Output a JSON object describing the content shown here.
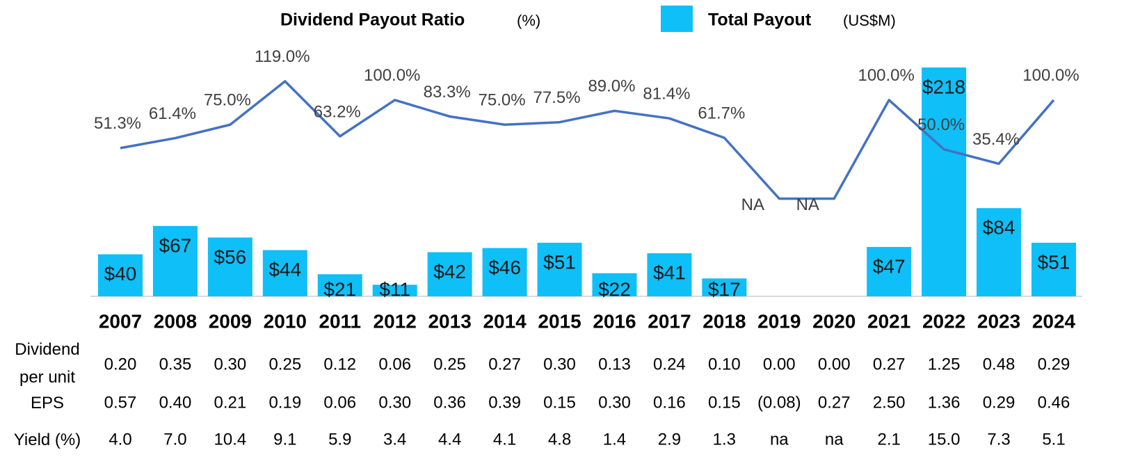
{
  "chart_data": {
    "type": "combo",
    "categories": [
      "2007",
      "2008",
      "2009",
      "2010",
      "2011",
      "2012",
      "2013",
      "2014",
      "2015",
      "2016",
      "2017",
      "2018",
      "2019",
      "2020",
      "2021",
      "2022",
      "2023",
      "2024"
    ],
    "series": [
      {
        "name": "Dividend Payout Ratio",
        "unit": "(%)",
        "type": "line",
        "axis": "y2",
        "color": "#4472c4",
        "values": [
          51.3,
          61.4,
          75.0,
          119.0,
          63.2,
          100.0,
          83.3,
          75.0,
          77.5,
          89.0,
          81.4,
          61.7,
          0,
          0,
          100.0,
          50.0,
          35.4,
          100.0
        ],
        "value_labels": [
          "51.3%",
          "61.4%",
          "75.0%",
          "119.0%",
          "63.2%",
          "100.0%",
          "83.3%",
          "75.0%",
          "77.5%",
          "89.0%",
          "81.4%",
          "61.7%",
          "NA",
          "NA",
          "100.0%",
          "50.0%",
          "35.4%",
          "100.0%"
        ]
      },
      {
        "name": "Total Payout",
        "unit": "(US$M)",
        "type": "bar",
        "color": "#0fbff8",
        "values": [
          40,
          67,
          56,
          44,
          21,
          11,
          42,
          46,
          51,
          22,
          41,
          17,
          null,
          null,
          47,
          218,
          84,
          51
        ],
        "value_labels": [
          "$40",
          "$67",
          "$56",
          "$44",
          "$21",
          "$11",
          "$42",
          "$46",
          "$51",
          "$22",
          "$41",
          "$17",
          null,
          null,
          "$47",
          "$218",
          "$84",
          "$51"
        ]
      }
    ],
    "ylim": [
      0,
      218
    ],
    "y2lim": [
      -99,
      133
    ]
  },
  "table": {
    "rows": [
      {
        "label": "Dividend per unit",
        "cells": [
          "0.20",
          "0.35",
          "0.30",
          "0.25",
          "0.12",
          "0.06",
          "0.25",
          "0.27",
          "0.30",
          "0.13",
          "0.24",
          "0.10",
          "0.00",
          "0.00",
          "0.27",
          "1.25",
          "0.48",
          "0.29"
        ]
      },
      {
        "label": "EPS",
        "cells": [
          "0.57",
          "0.40",
          "0.21",
          "0.19",
          "0.06",
          "0.30",
          "0.36",
          "0.39",
          "0.15",
          "0.30",
          "0.16",
          "0.15",
          "(0.08)",
          "0.27",
          "2.50",
          "1.36",
          "0.29",
          "0.46"
        ]
      },
      {
        "label": "Yield (%)",
        "cells": [
          "4.0",
          "7.0",
          "10.4",
          "9.1",
          "5.9",
          "3.4",
          "4.4",
          "4.1",
          "4.8",
          "1.4",
          "2.9",
          "1.3",
          "na",
          "na",
          "2.1",
          "15.0",
          "7.3",
          "5.1"
        ]
      }
    ]
  }
}
